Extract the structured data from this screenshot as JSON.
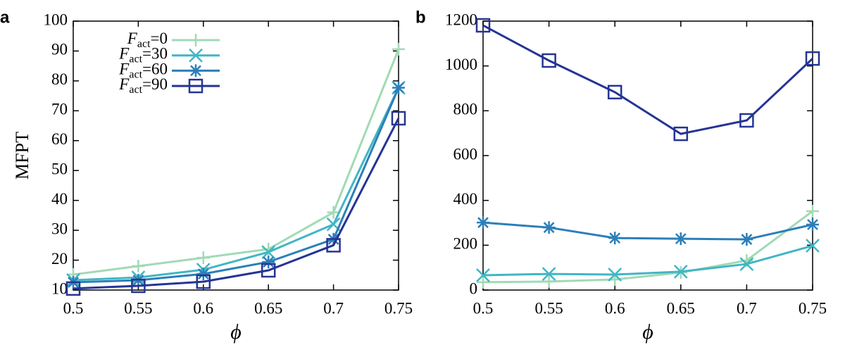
{
  "chart_data": [
    {
      "type": "line",
      "label": "a",
      "ylabel": "MFPT",
      "xlabel": "ϕ",
      "x": [
        0.5,
        0.55,
        0.6,
        0.65,
        0.7,
        0.75
      ],
      "xlim": [
        0.5,
        0.75
      ],
      "xticks": [
        0.5,
        0.55,
        0.6,
        0.65,
        0.7,
        0.75
      ],
      "ylim": [
        10,
        100
      ],
      "yticks": [
        10,
        20,
        30,
        40,
        50,
        60,
        70,
        80,
        90,
        100
      ],
      "legend": "upper left",
      "series": [
        {
          "name": "Fact=0",
          "color": "#a1dab4",
          "marker": "plus",
          "values": [
            15.2,
            18,
            20.8,
            23.7,
            36,
            90.6
          ]
        },
        {
          "name": "Fact=30",
          "color": "#41b6c4",
          "marker": "cross",
          "values": [
            13.3,
            14.2,
            16.8,
            22.7,
            32,
            77.7
          ]
        },
        {
          "name": "Fact=60",
          "color": "#2c7fb8",
          "marker": "star",
          "values": [
            12.6,
            13.3,
            15.4,
            19.4,
            27,
            77.7
          ]
        },
        {
          "name": "Fact=90",
          "color": "#253494",
          "marker": "square",
          "values": [
            10.5,
            11.4,
            12.8,
            16.6,
            25,
            67.5
          ]
        }
      ]
    },
    {
      "type": "line",
      "label": "b",
      "xlabel": "ϕ",
      "x": [
        0.5,
        0.55,
        0.6,
        0.65,
        0.7,
        0.75
      ],
      "xlim": [
        0.5,
        0.75
      ],
      "xticks": [
        0.5,
        0.55,
        0.6,
        0.65,
        0.7,
        0.75
      ],
      "ylim": [
        0,
        1200
      ],
      "yticks": [
        0,
        200,
        400,
        600,
        800,
        1000,
        1200
      ],
      "series": [
        {
          "color": "#a1dab4",
          "marker": "plus",
          "values": [
            35,
            38,
            47,
            78,
            132,
            352
          ]
        },
        {
          "color": "#41b6c4",
          "marker": "cross",
          "values": [
            66,
            72,
            69,
            82,
            116,
            198
          ]
        },
        {
          "color": "#2c7fb8",
          "marker": "star",
          "values": [
            301,
            279,
            232,
            229,
            226,
            292
          ]
        },
        {
          "color": "#253494",
          "marker": "square",
          "values": [
            1181,
            1024,
            883,
            697,
            757,
            1033
          ]
        }
      ]
    }
  ]
}
